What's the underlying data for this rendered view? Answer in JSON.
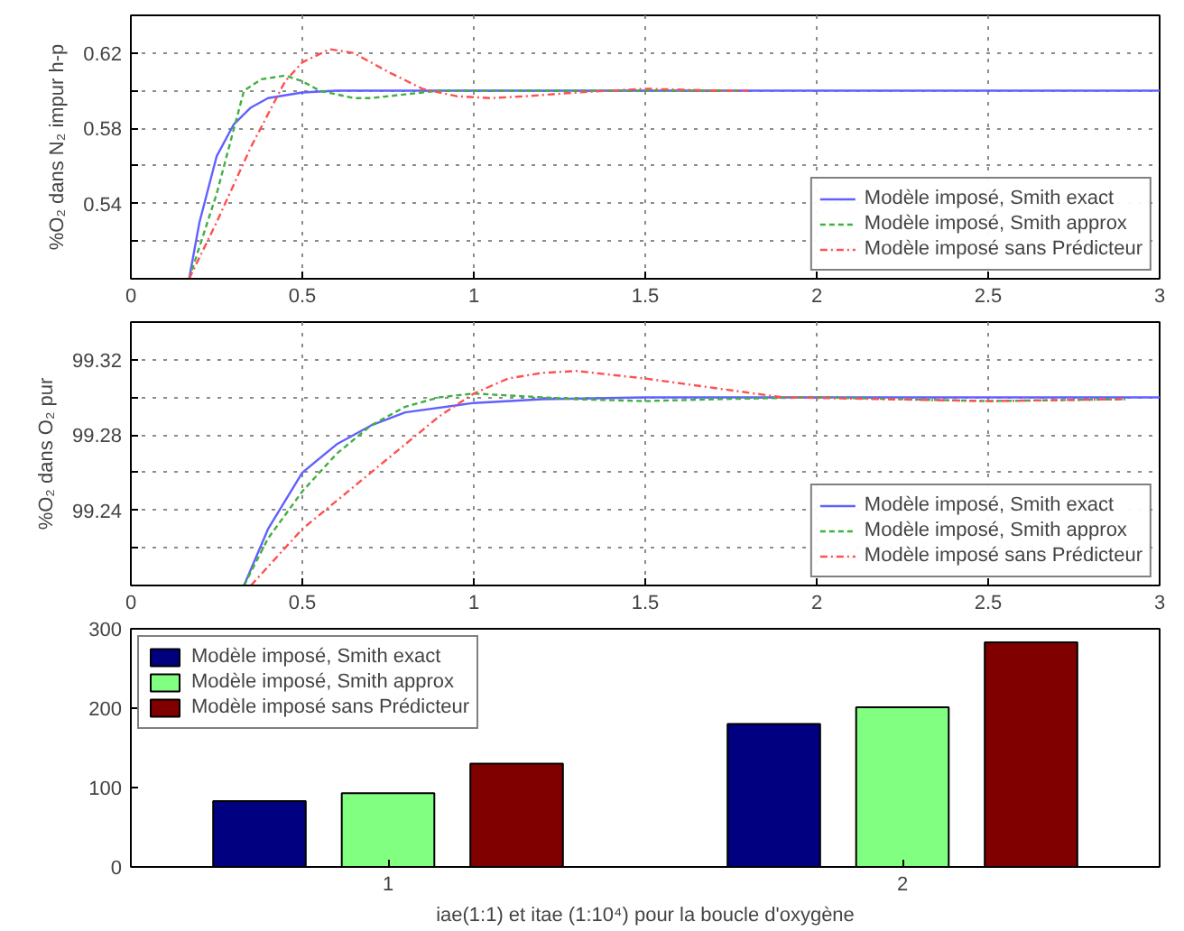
{
  "chart_data": [
    {
      "type": "line",
      "ylabel": "%O₂ dans N₂ impur h-p",
      "xlim": [
        0,
        3
      ],
      "xticks": [
        0,
        0.5,
        1,
        1.5,
        2,
        2.5,
        3
      ],
      "ylim": [
        0.5,
        0.64
      ],
      "yticks": [
        {
          "value": 0.52,
          "label": null
        },
        0.54,
        {
          "value": 0.56,
          "label": null
        },
        0.58,
        {
          "value": 0.6,
          "label": null
        },
        0.62
      ],
      "grid": true,
      "legend": "bottom right",
      "series": [
        {
          "name": "Modèle imposé, Smith exact",
          "color": "#6060ff",
          "line_style": "solid",
          "x": [
            0.17,
            0.2,
            0.25,
            0.3,
            0.35,
            0.4,
            0.5,
            0.6,
            1.0,
            2.0,
            3.0
          ],
          "values": [
            0.5,
            0.53,
            0.565,
            0.582,
            0.591,
            0.596,
            0.599,
            0.6,
            0.6,
            0.6,
            0.6
          ]
        },
        {
          "name": "Modèle imposé, Smith approx",
          "color": "#40b040",
          "line_style": "dashed",
          "x": [
            0.17,
            0.25,
            0.33,
            0.38,
            0.45,
            0.5,
            0.55,
            0.65,
            0.7,
            0.8,
            0.9,
            1.1,
            1.77
          ],
          "values": [
            0.5,
            0.545,
            0.6,
            0.606,
            0.608,
            0.605,
            0.6,
            0.596,
            0.596,
            0.598,
            0.6,
            0.6,
            0.6
          ]
        },
        {
          "name": "Modèle imposé sans Prédicteur",
          "color": "#ff5050",
          "line_style": "dashdot",
          "x": [
            0.17,
            0.25,
            0.35,
            0.45,
            0.5,
            0.58,
            0.65,
            0.75,
            0.85,
            0.95,
            1.05,
            1.15,
            1.3,
            1.5,
            1.7,
            1.8
          ],
          "values": [
            0.5,
            0.53,
            0.57,
            0.605,
            0.615,
            0.622,
            0.62,
            0.61,
            0.601,
            0.597,
            0.596,
            0.597,
            0.599,
            0.601,
            0.6,
            0.6
          ]
        }
      ]
    },
    {
      "type": "line",
      "ylabel": "%O₂ dans O₂ pur",
      "xlim": [
        0,
        3
      ],
      "xticks": [
        0,
        0.5,
        1,
        1.5,
        2,
        2.5,
        3
      ],
      "ylim": [
        99.2,
        99.34
      ],
      "yticks": [
        {
          "value": 99.22,
          "label": null
        },
        99.24,
        {
          "value": 99.26,
          "label": null
        },
        99.28,
        {
          "value": 99.3,
          "label": null
        },
        99.32
      ],
      "grid": true,
      "legend": "bottom right",
      "series": [
        {
          "name": "Modèle imposé, Smith exact",
          "color": "#6060ff",
          "line_style": "solid",
          "x": [
            0.33,
            0.4,
            0.5,
            0.6,
            0.7,
            0.8,
            1.0,
            1.2,
            1.5,
            3.0
          ],
          "values": [
            99.2,
            99.23,
            99.26,
            99.275,
            99.285,
            99.292,
            99.297,
            99.299,
            99.3,
            99.3
          ]
        },
        {
          "name": "Modèle imposé, Smith approx",
          "color": "#40b040",
          "line_style": "dashed",
          "x": [
            0.33,
            0.4,
            0.5,
            0.6,
            0.7,
            0.8,
            0.9,
            1.0,
            1.1,
            1.3,
            1.5,
            1.7,
            2.0,
            2.5,
            2.9
          ],
          "values": [
            99.2,
            99.225,
            99.25,
            99.27,
            99.285,
            99.295,
            99.3,
            99.302,
            99.301,
            99.299,
            99.298,
            99.299,
            99.3,
            99.298,
            99.299
          ]
        },
        {
          "name": "Modèle imposé sans Prédicteur",
          "color": "#ff5050",
          "line_style": "dashdot",
          "x": [
            0.35,
            0.5,
            0.6,
            0.7,
            0.8,
            0.9,
            1.0,
            1.1,
            1.2,
            1.3,
            1.4,
            1.5,
            1.7,
            1.9,
            2.2,
            2.5,
            2.9
          ],
          "values": [
            99.2,
            99.23,
            99.245,
            99.26,
            99.275,
            99.29,
            99.302,
            99.31,
            99.313,
            99.314,
            99.312,
            99.31,
            99.305,
            99.3,
            99.299,
            99.298,
            99.299
          ]
        }
      ]
    },
    {
      "type": "bar",
      "xlabel": "iae(1:1) et itae (1:10⁴) pour la boucle d'oxygène",
      "categories": [
        "1",
        "2"
      ],
      "ylim": [
        0,
        300
      ],
      "yticks": [
        0,
        100,
        200,
        300
      ],
      "legend": "top left",
      "series": [
        {
          "name": "Modèle imposé, Smith exact",
          "color": "#000080",
          "values": [
            83,
            180
          ]
        },
        {
          "name": "Modèle imposé, Smith approx",
          "color": "#80ff80",
          "values": [
            93,
            201
          ]
        },
        {
          "name": "Modèle imposé sans Prédicteur",
          "color": "#800000",
          "values": [
            130,
            283
          ]
        }
      ]
    }
  ]
}
